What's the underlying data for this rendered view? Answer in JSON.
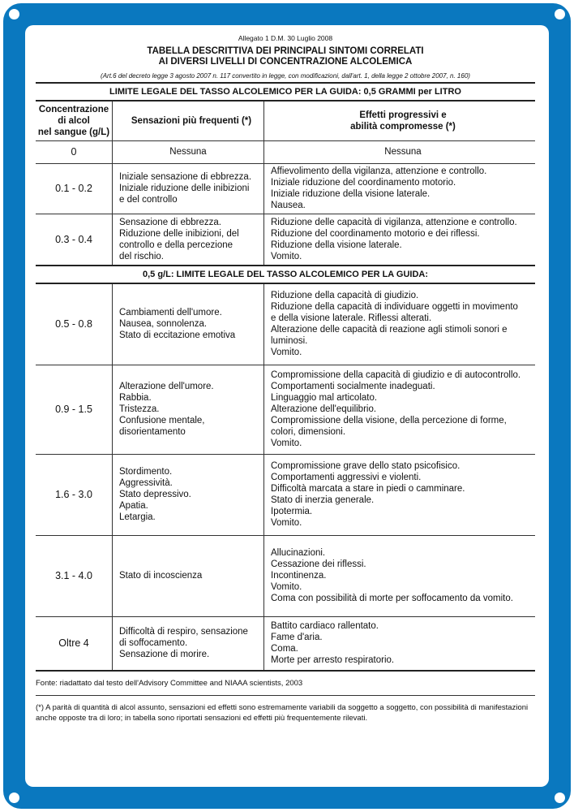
{
  "colors": {
    "frame": "#0a78bf"
  },
  "header": {
    "allegato": "Allegato 1 D.M. 30 Luglio 2008",
    "title_line1": "TABELLA DESCRITTIVA DEI PRINCIPALI SINTOMI CORRELATI",
    "title_line2": "AI DIVERSI LIVELLI DI CONCENTRAZIONE ALCOLEMICA",
    "reference": "(Art.6 del decreto legge 3 agosto 2007 n. 117 convertito in legge, con modificazioni, dall'art. 1, della legge 2 ottobre 2007, n. 160)"
  },
  "table": {
    "band_top": "LIMITE LEGALE DEL TASSO ALCOLEMICO PER LA GUIDA: 0,5 GRAMMI per LITRO",
    "columns": [
      "Concentrazione\ndi alcol\nnel sangue (g/L)",
      "Sensazioni più frequenti (*)",
      "Effetti progressivi e\nabilità compromesse (*)"
    ],
    "band_mid": "0,5 g/L: LIMITE LEGALE DEL TASSO ALCOLEMICO PER LA GUIDA:",
    "rows": [
      {
        "level": "0",
        "sensations": "Nessuna",
        "effects": "Nessuna"
      },
      {
        "level": "0.1 - 0.2",
        "sensations": "Iniziale sensazione di ebbrezza.\nIniziale riduzione delle inibizioni\ne del controllo",
        "effects": "Affievolimento della vigilanza, attenzione e controllo.\nIniziale riduzione del coordinamento motorio.\nIniziale riduzione della visione laterale.\nNausea."
      },
      {
        "level": "0.3 - 0.4",
        "sensations": "Sensazione di ebbrezza.\nRiduzione delle inibizioni, del\ncontrollo e della percezione\ndel  rischio.",
        "effects": "Riduzione delle capacità di vigilanza, attenzione e controllo.\nRiduzione del coordinamento motorio e dei riflessi.\nRiduzione della visione laterale.\nVomito."
      },
      {
        "level": "0.5 - 0.8",
        "sensations": "Cambiamenti dell'umore.\nNausea, sonnolenza.\nStato di eccitazione emotiva",
        "effects": "Riduzione della capacità di giudizio.\nRiduzione della capacità di individuare oggetti in movimento\ne della visione laterale. Riflessi alterati.\nAlterazione delle capacità di reazione agli stimoli sonori e\nluminosi.\nVomito."
      },
      {
        "level": "0.9 - 1.5",
        "sensations": "Alterazione dell'umore.\nRabbia.\nTristezza.\nConfusione mentale,\ndisorientamento",
        "effects": "Compromissione della capacità di giudizio e di autocontrollo.\nComportamenti socialmente inadeguati.\nLinguaggio mal articolato.\nAlterazione dell'equilibrio.\nCompromissione della visione, della percezione di forme,\ncolori, dimensioni.\nVomito."
      },
      {
        "level": "1.6 - 3.0",
        "sensations": "Stordimento.\nAggressività.\nStato depressivo.\nApatia.\nLetargia.",
        "effects": "Compromissione grave dello stato psicofisico.\nComportamenti aggressivi e violenti.\nDifficoltà marcata a stare in piedi o camminare.\nStato di inerzia generale.\nIpotermia.\nVomito."
      },
      {
        "level": "3.1 - 4.0",
        "sensations": "Stato di incoscienza",
        "effects": "Allucinazioni.\nCessazione dei riflessi.\nIncontinenza.\nVomito.\nComa con possibilità di morte per soffocamento da vomito."
      },
      {
        "level": "Oltre 4",
        "sensations": "Difficoltà di respiro, sensazione\ndi soffocamento.\nSensazione di morire.",
        "effects": "Battito cardiaco rallentato.\nFame d'aria.\nComa.\nMorte per arresto respiratorio."
      }
    ]
  },
  "footer": {
    "source": "Fonte: riadattato dal testo dell'Advisory Committee and NIAAA scientists, 2003",
    "note": "(*) A parità di quantità di alcol assunto, sensazioni ed effetti sono estremamente variabili da soggetto a soggetto, con possibilità di manifestazioni anche opposte tra di loro; in tabella sono riportati sensazioni ed effetti più frequentemente rilevati."
  }
}
